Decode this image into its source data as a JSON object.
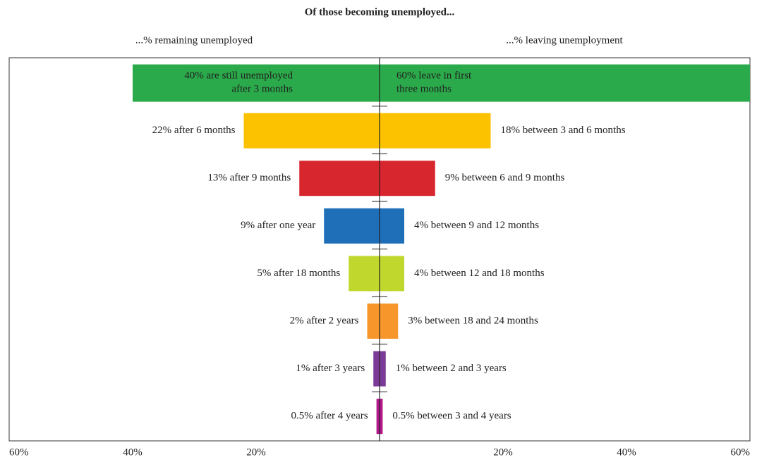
{
  "chart_data": {
    "type": "diverging_bar",
    "title": "Of those becoming unemployed...",
    "colors": [
      "#2aaa4a",
      "#fcc200",
      "#d7262e",
      "#1f6fb8",
      "#c0d72e",
      "#f7962a",
      "#7b3a96",
      "#b0178a"
    ],
    "series": [
      {
        "name": "...% remaining unemployed",
        "side": "left",
        "values": [
          40,
          22,
          13,
          9,
          5,
          2,
          1,
          0.5
        ],
        "value_labels": [
          "40% are still unemployed\nafter 3 months",
          "22% after 6 months",
          "13% after 9 months",
          "9% after one year",
          "5% after 18 months",
          "2% after 2 years",
          "1% after 3 years",
          "0.5% after 4 years"
        ]
      },
      {
        "name": "...% leaving unemployment",
        "side": "right",
        "values": [
          60,
          18,
          9,
          4,
          4,
          3,
          1,
          0.5
        ],
        "value_labels": [
          "60% leave in first\nthree months",
          "18% between 3 and 6 months",
          "9% between 6 and 9 months",
          "4% between 9 and 12 months",
          "4% between 12 and 18 months",
          "3% between 18 and 24 months",
          "1% between 2 and 3 years",
          "0.5% between 3 and 4 years"
        ]
      }
    ],
    "xlim": [
      -60,
      60
    ],
    "xticks": [
      {
        "value": -60,
        "label": "60%"
      },
      {
        "value": -40,
        "label": "40%"
      },
      {
        "value": -20,
        "label": "20%"
      },
      {
        "value": 20,
        "label": "20%"
      },
      {
        "value": 40,
        "label": "40%"
      },
      {
        "value": 60,
        "label": "60%"
      }
    ]
  }
}
